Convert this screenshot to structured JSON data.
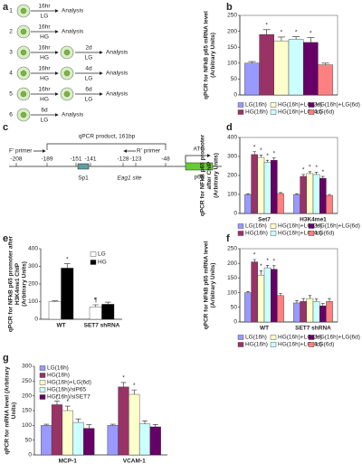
{
  "diagram_a": {
    "label": "a",
    "rows": [
      {
        "number": "1",
        "steps": [
          {
            "time": "16hr",
            "medium": "LG"
          }
        ],
        "end": "Analysis"
      },
      {
        "number": "2",
        "steps": [
          {
            "time": "16hr",
            "medium": "HG"
          }
        ],
        "end": "Analysis"
      },
      {
        "number": "3",
        "steps": [
          {
            "time": "16hr",
            "medium": "HG"
          },
          {
            "time": "2d",
            "medium": "LG"
          }
        ],
        "end": "Analysis"
      },
      {
        "number": "4",
        "steps": [
          {
            "time": "16hr",
            "medium": "HG"
          },
          {
            "time": "4d",
            "medium": "LG"
          }
        ],
        "end": "Analysis"
      },
      {
        "number": "5",
        "steps": [
          {
            "time": "16hr",
            "medium": "HG"
          },
          {
            "time": "6d",
            "medium": "LG"
          }
        ],
        "end": "Analysis"
      },
      {
        "number": "6",
        "steps": [
          {
            "time": "6d",
            "medium": "LG"
          }
        ],
        "end": "Analysis"
      }
    ]
  },
  "diagram_c": {
    "label": "c",
    "product": "qPCR product, 161bp",
    "forward": "F' primer",
    "reverse": "R' primer",
    "positions": [
      "-208",
      "-189",
      "-151",
      "-141",
      "-128",
      "-123",
      "-48"
    ],
    "sp1": "Sp1",
    "site": "Eag1 site",
    "start": "ATG",
    "gene": "p65"
  },
  "chart_data": [
    {
      "type": "bar",
      "label": "b",
      "ylabel": [
        "qPCR for NFkB p65 mRNA level",
        "(Arbitrary Units)"
      ],
      "categories": [
        null
      ],
      "ylim": [
        0,
        250
      ],
      "yticks": [
        0,
        50,
        100,
        150,
        200,
        250
      ],
      "series": [
        {
          "name": "LG(16h)",
          "color": "#9999ff",
          "values": [
            100
          ],
          "errors": [
            5
          ],
          "annotations": [
            null
          ]
        },
        {
          "name": "HG(16h)",
          "color": "#993366",
          "values": [
            190
          ],
          "errors": [
            15
          ],
          "annotations": [
            "*"
          ]
        },
        {
          "name": "HG(16h)+LG(2d)",
          "color": "#ffffcc",
          "values": [
            170
          ],
          "errors": [
            12
          ],
          "annotations": [
            "*"
          ]
        },
        {
          "name": "HG(16h)+LG(4d)",
          "color": "#ccffff",
          "values": [
            175
          ],
          "errors": [
            8
          ],
          "annotations": [
            "*"
          ]
        },
        {
          "name": "HG(16h)+LG(6d)",
          "color": "#660066",
          "values": [
            165
          ],
          "errors": [
            15
          ],
          "annotations": [
            "*"
          ]
        },
        {
          "name": "LG(6d)",
          "color": "#ff8080",
          "values": [
            95
          ],
          "errors": [
            5
          ],
          "annotations": [
            null
          ]
        }
      ]
    },
    {
      "type": "bar",
      "label": "d",
      "ylabel": [
        "qPCR for NFkB p65 promoter",
        "after ChIP",
        "(Arbitrary Units)"
      ],
      "categories": [
        "Set7",
        "H3K4me1"
      ],
      "ylim": [
        0,
        400
      ],
      "yticks": [
        0,
        100,
        200,
        300,
        400
      ],
      "series": [
        {
          "name": "LG(16h)",
          "color": "#9999ff",
          "values": [
            100,
            100
          ],
          "errors": [
            4,
            4
          ],
          "annotations": [
            null,
            null
          ]
        },
        {
          "name": "HG(16h)",
          "color": "#993366",
          "values": [
            310,
            195
          ],
          "errors": [
            15,
            10
          ],
          "annotations": [
            "*",
            "*"
          ]
        },
        {
          "name": "HG(16h)+LG(2d)",
          "color": "#ffffcc",
          "values": [
            295,
            210
          ],
          "errors": [
            12,
            10
          ],
          "annotations": [
            "*",
            "*"
          ]
        },
        {
          "name": "HG(16h)+LG(4d)",
          "color": "#ccffff",
          "values": [
            270,
            205
          ],
          "errors": [
            10,
            12
          ],
          "annotations": [
            "*",
            "*"
          ]
        },
        {
          "name": "HG(16h)+LG(6d)",
          "color": "#660066",
          "values": [
            280,
            185
          ],
          "errors": [
            12,
            10
          ],
          "annotations": [
            "*",
            "*"
          ]
        },
        {
          "name": "LG(6d)",
          "color": "#ff8080",
          "values": [
            105,
            95
          ],
          "errors": [
            5,
            5
          ],
          "annotations": [
            null,
            null
          ]
        }
      ]
    },
    {
      "type": "bar",
      "label": "e",
      "ylabel": [
        "qPCR for NFkB p65 promoter after",
        "H3K4me1 ChIP",
        "(Arbitrary Units)"
      ],
      "categories": [
        "WT",
        "SET7 shRNA"
      ],
      "ylim": [
        0,
        400
      ],
      "yticks": [
        0,
        100,
        200,
        300,
        400
      ],
      "series": [
        {
          "name": "LG",
          "color": "#ffffff",
          "values": [
            100,
            70
          ],
          "errors": [
            4,
            12
          ],
          "annotations": [
            null,
            "¶"
          ]
        },
        {
          "name": "HG",
          "color": "#000000",
          "values": [
            290,
            85
          ],
          "errors": [
            25,
            12
          ],
          "annotations": [
            "*",
            null
          ]
        }
      ]
    },
    {
      "type": "bar",
      "label": "f",
      "ylabel": [
        "qPCR for NFkB p65 mRNA level",
        "(Arbitrary Units)"
      ],
      "categories": [
        "WT",
        "SET7 shRNA"
      ],
      "ylim": [
        0,
        250
      ],
      "yticks": [
        0,
        50,
        100,
        150,
        200,
        250
      ],
      "series": [
        {
          "name": "LG(16h)",
          "color": "#9999ff",
          "values": [
            100,
            65
          ],
          "errors": [
            4,
            8
          ],
          "annotations": [
            null,
            null
          ]
        },
        {
          "name": "HG(16h)",
          "color": "#993366",
          "values": [
            205,
            70
          ],
          "errors": [
            8,
            10
          ],
          "annotations": [
            "*",
            null
          ]
        },
        {
          "name": "HG(16h)+LG(2d)",
          "color": "#ffffcc",
          "values": [
            160,
            80
          ],
          "errors": [
            15,
            10
          ],
          "annotations": [
            "*",
            null
          ]
        },
        {
          "name": "HG(16h)+LG(4d)",
          "color": "#ccffff",
          "values": [
            185,
            70
          ],
          "errors": [
            8,
            8
          ],
          "annotations": [
            "*",
            null
          ]
        },
        {
          "name": "HG(16h)+LG(6d)",
          "color": "#660066",
          "values": [
            180,
            55
          ],
          "errors": [
            12,
            8
          ],
          "annotations": [
            "*",
            null
          ]
        },
        {
          "name": "LG(6d)",
          "color": "#ff8080",
          "values": [
            90,
            70
          ],
          "errors": [
            8,
            10
          ],
          "annotations": [
            null,
            null
          ]
        }
      ]
    },
    {
      "type": "bar",
      "label": "g",
      "ylabel": [
        "qPCR for mRNA level (Arbitrary",
        "Units)"
      ],
      "categories": [
        "MCP-1",
        "VCAM-1"
      ],
      "ylim": [
        0,
        300
      ],
      "yticks": [
        0,
        50,
        100,
        150,
        200,
        250,
        300
      ],
      "series": [
        {
          "name": "LG(16h)",
          "color": "#9999ff",
          "values": [
            100,
            100
          ],
          "errors": [
            4,
            4
          ],
          "annotations": [
            null,
            null
          ]
        },
        {
          "name": "HG(16h)",
          "color": "#993366",
          "values": [
            170,
            230
          ],
          "errors": [
            12,
            15
          ],
          "annotations": [
            "*",
            "*"
          ]
        },
        {
          "name": "HG(16h)+LG(6d)",
          "color": "#ffffcc",
          "values": [
            150,
            205
          ],
          "errors": [
            15,
            15
          ],
          "annotations": [
            "*",
            "*"
          ]
        },
        {
          "name": "HG(16h)/siP65",
          "color": "#ccffff",
          "values": [
            110,
            105
          ],
          "errors": [
            12,
            10
          ],
          "annotations": [
            null,
            null
          ]
        },
        {
          "name": "HG(16h)/siSET7",
          "color": "#660066",
          "values": [
            90,
            95
          ],
          "errors": [
            12,
            8
          ],
          "annotations": [
            null,
            null
          ]
        }
      ]
    }
  ]
}
